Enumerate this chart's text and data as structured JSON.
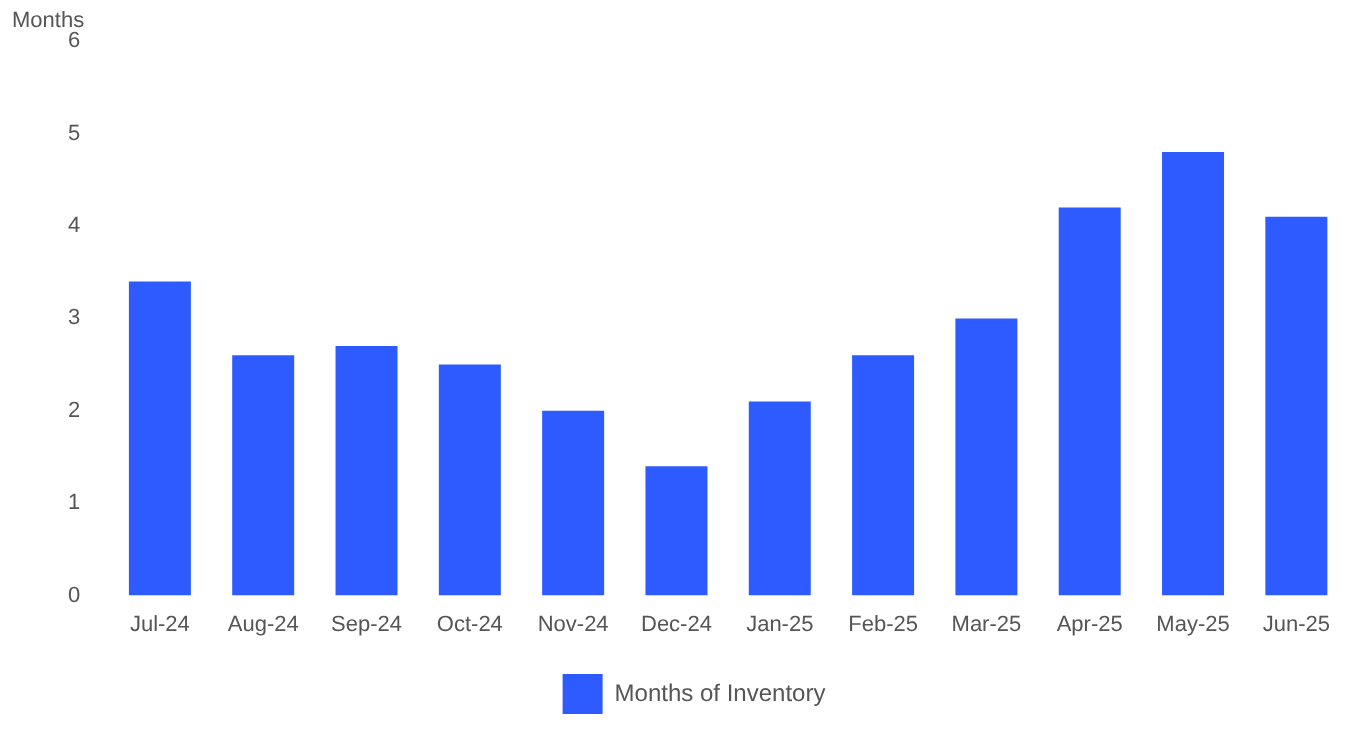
{
  "chart_data": {
    "type": "bar",
    "ylabel": "Months",
    "categories": [
      "Jul-24",
      "Aug-24",
      "Sep-24",
      "Oct-24",
      "Nov-24",
      "Dec-24",
      "Jan-25",
      "Feb-25",
      "Mar-25",
      "Apr-25",
      "May-25",
      "Jun-25"
    ],
    "series": [
      {
        "name": "Months of Inventory",
        "color": "#2e5bff",
        "values": [
          3.4,
          2.6,
          2.7,
          2.5,
          2.0,
          1.4,
          2.1,
          2.6,
          3.0,
          4.2,
          4.8,
          4.1
        ]
      }
    ],
    "ylim": [
      0,
      6
    ],
    "yticks": [
      0,
      1,
      2,
      3,
      4,
      5,
      6
    ],
    "grid": false,
    "legend": "bottom"
  }
}
